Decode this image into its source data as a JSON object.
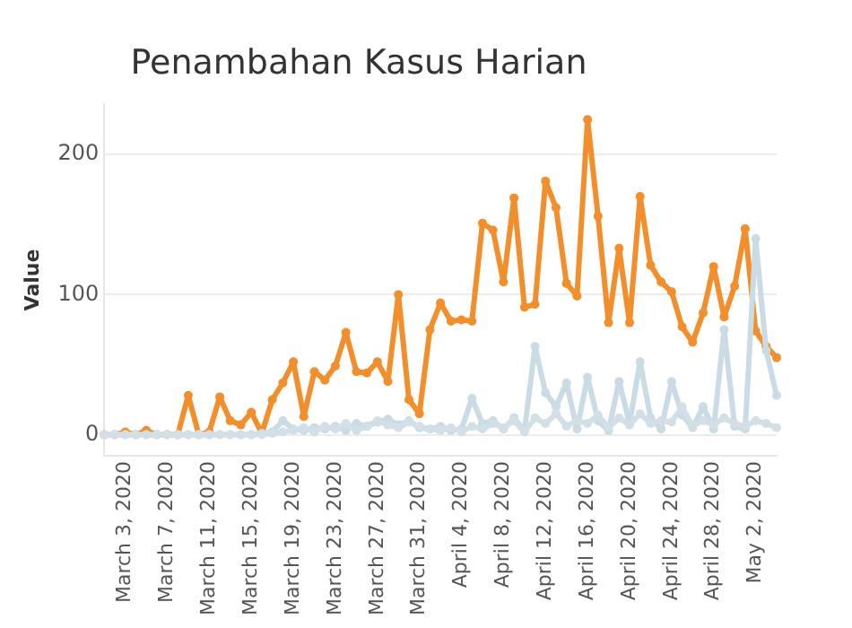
{
  "chart_data": {
    "type": "line",
    "title": "Penambahan Kasus Harian",
    "ylabel": "Value",
    "categories": [
      null,
      null,
      "March 3, 2020",
      null,
      null,
      null,
      "March 7, 2020",
      null,
      null,
      null,
      "March 11, 2020",
      null,
      null,
      null,
      "March 15, 2020",
      null,
      null,
      null,
      "March 19, 2020",
      null,
      null,
      null,
      "March 23, 2020",
      null,
      null,
      null,
      "March 27, 2020",
      null,
      null,
      null,
      "March 31, 2020",
      null,
      null,
      null,
      "April 4, 2020",
      null,
      null,
      null,
      "April 8, 2020",
      null,
      null,
      null,
      "April 12, 2020",
      null,
      null,
      null,
      "April 16, 2020",
      null,
      null,
      null,
      "April 20, 2020",
      null,
      null,
      null,
      "April 24, 2020",
      null,
      null,
      null,
      "April 28, 2020",
      null,
      null,
      null,
      "May 2, 2020",
      null,
      null
    ],
    "series": [
      {
        "color": "#d3dfe6",
        "values": [
          0,
          0,
          0,
          0,
          0,
          0,
          0,
          0,
          0,
          0,
          0,
          0,
          0,
          0,
          0,
          0,
          1,
          2,
          3,
          5,
          2,
          6,
          4,
          8,
          3,
          6,
          10,
          7,
          5,
          9,
          6,
          4,
          3,
          5,
          2,
          6,
          4,
          8,
          5,
          10,
          2,
          12,
          8,
          15,
          6,
          10,
          8,
          14,
          5,
          12,
          7,
          15,
          8,
          10,
          9,
          20,
          6,
          10,
          7,
          12,
          8,
          6,
          10,
          8,
          5
        ]
      },
      {
        "color": "#c9dbe5",
        "values": [
          0,
          0,
          0,
          0,
          0,
          0,
          0,
          0,
          0,
          0,
          0,
          0,
          0,
          0,
          0,
          1,
          2,
          10,
          4,
          3,
          5,
          4,
          6,
          3,
          8,
          6,
          9,
          11,
          7,
          10,
          5,
          4,
          6,
          3,
          4,
          26,
          8,
          10,
          4,
          12,
          3,
          63,
          30,
          20,
          37,
          4,
          41,
          10,
          3,
          38,
          8,
          52,
          12,
          4,
          38,
          14,
          5,
          20,
          4,
          75,
          6,
          4,
          140,
          60,
          28
        ]
      },
      {
        "color": "#f28e2b",
        "values": [
          0,
          0,
          2,
          0,
          3,
          0,
          0,
          0,
          28,
          0,
          2,
          27,
          10,
          7,
          16,
          1,
          25,
          37,
          52,
          13,
          45,
          39,
          49,
          73,
          45,
          44,
          52,
          38,
          100,
          25,
          15,
          75,
          94,
          81,
          82,
          81,
          151,
          146,
          109,
          169,
          91,
          93,
          181,
          162,
          108,
          99,
          225,
          156,
          80,
          133,
          80,
          170,
          121,
          109,
          102,
          77,
          66,
          87,
          120,
          84,
          106,
          147,
          74,
          63,
          55
        ]
      }
    ],
    "ylim": [
      -15,
      236
    ],
    "yticks": [
      0,
      100,
      200
    ],
    "grid": "y",
    "marker": "circle",
    "line_style": "solid",
    "legend": false
  }
}
